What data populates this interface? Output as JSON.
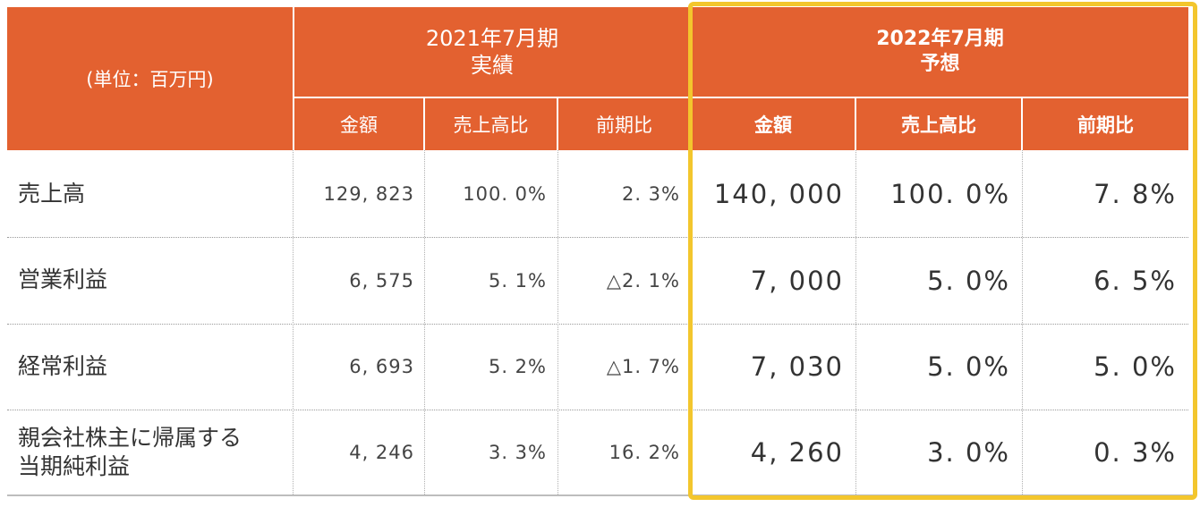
{
  "header": {
    "unit": "(単位：百万円)",
    "fy2021": {
      "line1": "2021年7月期",
      "line2": "実績"
    },
    "fy2022": {
      "line1": "2022年7月期",
      "line2": "予想"
    },
    "columns": {
      "amount": "金額",
      "ratio": "売上高比",
      "yoy": "前期比"
    }
  },
  "rows": [
    {
      "label_line1": "売上高",
      "label_line2": "",
      "fy2021": {
        "amount": "129, 823",
        "ratio": "100. 0%",
        "yoy": "2. 3%"
      },
      "fy2022": {
        "amount": "140, 000",
        "ratio": "100. 0%",
        "yoy": "7. 8%"
      }
    },
    {
      "label_line1": "営業利益",
      "label_line2": "",
      "fy2021": {
        "amount": "6, 575",
        "ratio": "5. 1%",
        "yoy": "△2. 1%"
      },
      "fy2022": {
        "amount": "7, 000",
        "ratio": "5. 0%",
        "yoy": "6. 5%"
      }
    },
    {
      "label_line1": "経常利益",
      "label_line2": "",
      "fy2021": {
        "amount": "6, 693",
        "ratio": "5. 2%",
        "yoy": "△1. 7%"
      },
      "fy2022": {
        "amount": "7, 030",
        "ratio": "5. 0%",
        "yoy": "5. 0%"
      }
    },
    {
      "label_line1": "親会社株主に帰属する",
      "label_line2": "当期純利益",
      "fy2021": {
        "amount": "4, 246",
        "ratio": "3. 3%",
        "yoy": "16. 2%"
      },
      "fy2022": {
        "amount": "4, 260",
        "ratio": "3. 0%",
        "yoy": "0. 3%"
      }
    }
  ],
  "colors": {
    "header_bg": "#e36130",
    "highlight_border": "#f3c62d",
    "text": "#333333"
  }
}
